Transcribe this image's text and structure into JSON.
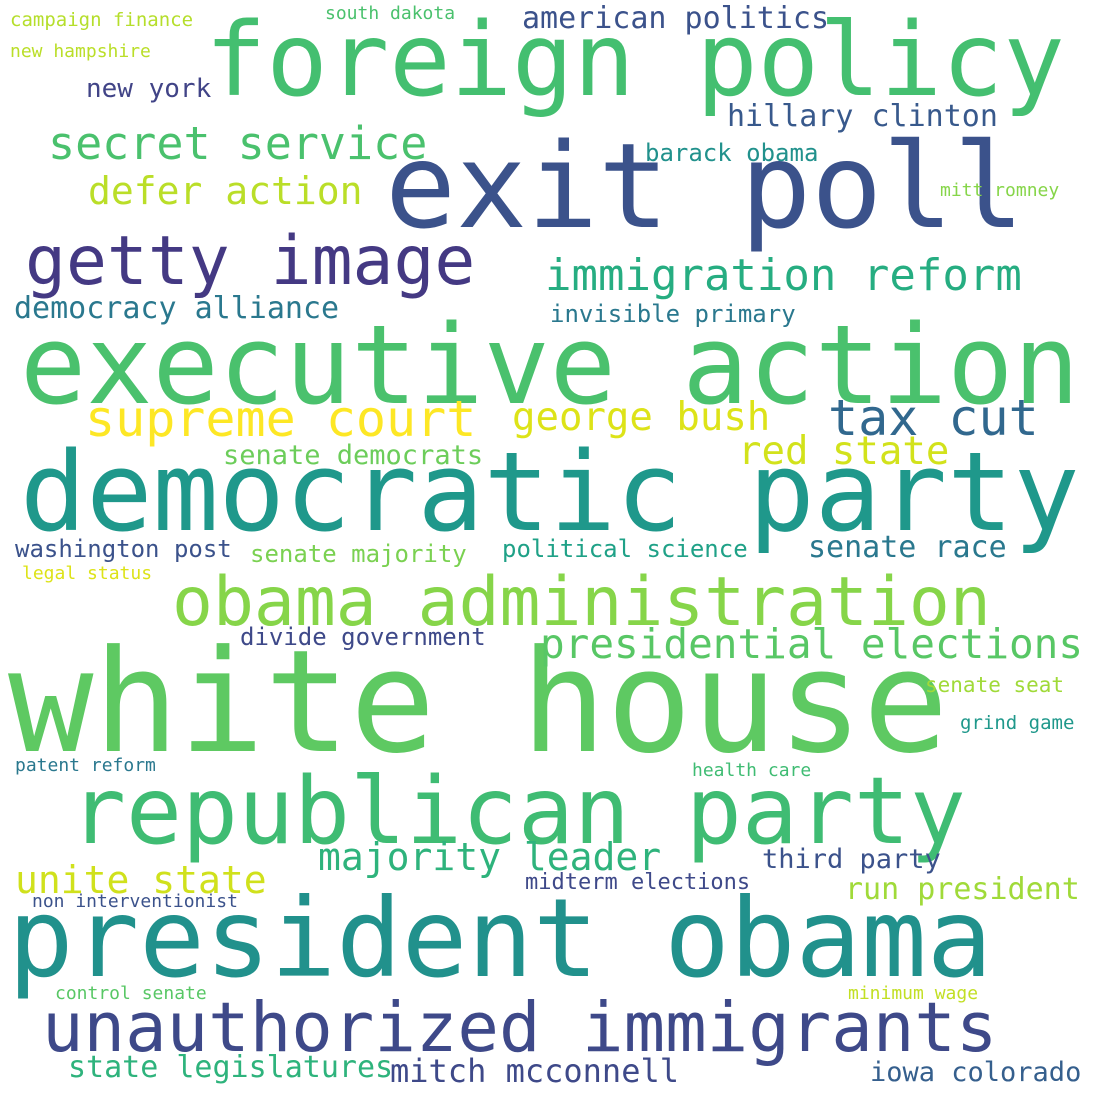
{
  "words": [
    {
      "text": "white house",
      "color": "#5ec962"
    },
    {
      "text": "president obama",
      "color": "#21918c"
    },
    {
      "text": "democratic party",
      "color": "#1f988b"
    },
    {
      "text": "executive action",
      "color": "#4ac16d"
    },
    {
      "text": "exit poll",
      "color": "#3b528b"
    },
    {
      "text": "foreign policy",
      "color": "#44bf70"
    },
    {
      "text": "republican party",
      "color": "#3fbc73"
    },
    {
      "text": "unauthorized immigrants",
      "color": "#3e4989"
    },
    {
      "text": "obama administration",
      "color": "#86d549"
    },
    {
      "text": "getty image",
      "color": "#443983"
    },
    {
      "text": "immigration reform",
      "color": "#26ad81"
    },
    {
      "text": "tax cut",
      "color": "#31688e"
    },
    {
      "text": "supreme court",
      "color": "#fde725"
    },
    {
      "text": "presidential elections",
      "color": "#58c765"
    },
    {
      "text": "secret service",
      "color": "#4ac16d"
    },
    {
      "text": "george bush",
      "color": "#dde318"
    },
    {
      "text": "majority leader",
      "color": "#2eb37c"
    },
    {
      "text": "unite state",
      "color": "#d0e11c"
    },
    {
      "text": "defer action",
      "color": "#bade28"
    },
    {
      "text": "red state",
      "color": "#d2e21b"
    },
    {
      "text": "mitch mcconnell",
      "color": "#3e4989"
    },
    {
      "text": "american politics",
      "color": "#3b528b"
    },
    {
      "text": "hillary clinton",
      "color": "#38598c"
    },
    {
      "text": "senate race",
      "color": "#2a788e"
    },
    {
      "text": "run president",
      "color": "#a0da39"
    },
    {
      "text": "state legislatures",
      "color": "#2eb37c"
    },
    {
      "text": "iowa colorado",
      "color": "#355f8d"
    },
    {
      "text": "democracy alliance",
      "color": "#2a788e"
    },
    {
      "text": "senate democrats",
      "color": "#6ccd5a"
    },
    {
      "text": "third party",
      "color": "#3b528b"
    },
    {
      "text": "senate majority",
      "color": "#7ad151"
    },
    {
      "text": "political science",
      "color": "#1fa187"
    },
    {
      "text": "washington post",
      "color": "#3b528b"
    },
    {
      "text": "divide government",
      "color": "#3e4989"
    },
    {
      "text": "new york",
      "color": "#414487"
    },
    {
      "text": "barack obama",
      "color": "#21918c"
    },
    {
      "text": "invisible primary",
      "color": "#2a788e"
    },
    {
      "text": "midterm elections",
      "color": "#3e4989"
    },
    {
      "text": "senate seat",
      "color": "#a0da39"
    },
    {
      "text": "grind game",
      "color": "#1f988b"
    },
    {
      "text": "non interventionist",
      "color": "#3b528b"
    },
    {
      "text": "south dakota",
      "color": "#4ac16d"
    },
    {
      "text": "mitt romney",
      "color": "#86d549"
    },
    {
      "text": "campaign finance",
      "color": "#b5de2b"
    },
    {
      "text": "new hampshire",
      "color": "#bade28"
    },
    {
      "text": "health care",
      "color": "#3fbc73"
    },
    {
      "text": "patent reform",
      "color": "#2a788e"
    },
    {
      "text": "control senate",
      "color": "#58c765"
    },
    {
      "text": "minimum wage",
      "color": "#c2df23"
    },
    {
      "text": "legal status",
      "color": "#dde318"
    }
  ]
}
